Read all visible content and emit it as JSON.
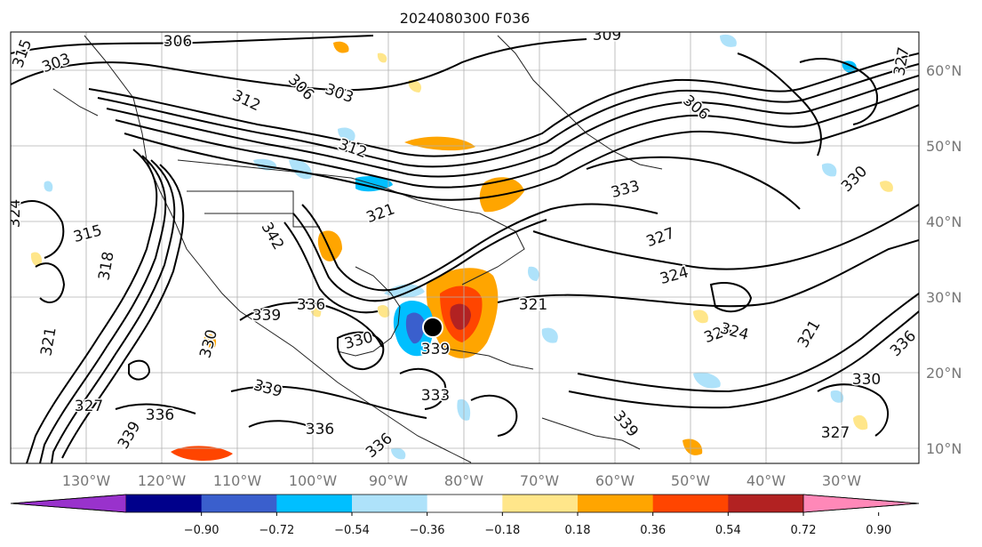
{
  "title": "2024080300 F036",
  "longitude_labels": [
    "130°W",
    "120°W",
    "110°W",
    "100°W",
    "90°W",
    "80°W",
    "70°W",
    "60°W",
    "50°W",
    "40°W",
    "30°W"
  ],
  "latitude_labels": [
    "60°N",
    "50°N",
    "40°N",
    "30°N",
    "20°N",
    "10°N"
  ],
  "colorbar": {
    "ticks": [
      "−0.90",
      "−0.72",
      "−0.54",
      "−0.36",
      "−0.18",
      "0.18",
      "0.36",
      "0.54",
      "0.72",
      "0.90"
    ],
    "colors": [
      "#9932cc",
      "#00008b",
      "#3a5fcd",
      "#00bfff",
      "#aee2fa",
      "#ffffff",
      "#ffe68a",
      "#ffa500",
      "#ff4500",
      "#b22222",
      "#ff88b8"
    ]
  },
  "contour_labels": [
    "306",
    "315",
    "303",
    "309",
    "306",
    "303",
    "312",
    "306",
    "312",
    "324",
    "315",
    "318",
    "342",
    "321",
    "330",
    "333",
    "324",
    "327",
    "330",
    "321",
    "324",
    "339",
    "336",
    "330",
    "324",
    "321",
    "339",
    "327",
    "336",
    "339",
    "336",
    "321",
    "339",
    "333",
    "339",
    "336",
    "336",
    "330",
    "327",
    "327"
  ],
  "storm_marker": "tropical-storm-center"
}
